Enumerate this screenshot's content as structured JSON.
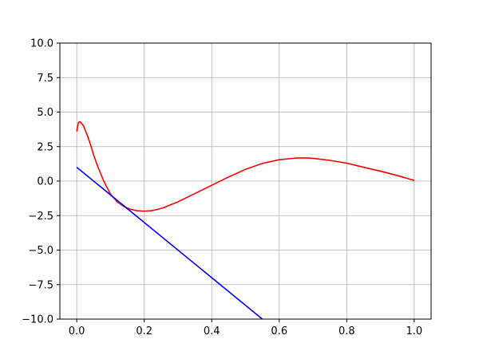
{
  "chart_data": {
    "type": "line",
    "title": "",
    "xlabel": "",
    "ylabel": "",
    "xlim": [
      -0.05,
      1.05
    ],
    "ylim": [
      -10.0,
      10.0
    ],
    "grid": true,
    "legend": "none",
    "x_ticks": [
      0.0,
      0.2,
      0.4,
      0.6,
      0.8,
      1.0
    ],
    "x_tick_labels": [
      "0.0",
      "0.2",
      "0.4",
      "0.6",
      "0.8",
      "1.0"
    ],
    "y_ticks": [
      -10.0,
      -7.5,
      -5.0,
      -2.5,
      0.0,
      2.5,
      5.0,
      7.5,
      10.0
    ],
    "y_tick_labels": [
      "−10.0",
      "−7.5",
      "−5.0",
      "−2.5",
      "0.0",
      "2.5",
      "5.0",
      "7.5",
      "10.0"
    ],
    "series": [
      {
        "color": "#ff0000",
        "x": [
          0.0,
          0.005,
          0.01,
          0.02,
          0.03,
          0.04,
          0.05,
          0.06,
          0.08,
          0.1,
          0.12,
          0.14,
          0.16,
          0.18,
          0.2,
          0.22,
          0.24,
          0.26,
          0.28,
          0.3,
          0.35,
          0.4,
          0.45,
          0.5,
          0.55,
          0.6,
          0.65,
          0.68,
          0.7,
          0.75,
          0.8,
          0.85,
          0.9,
          0.95,
          1.0
        ],
        "y": [
          3.6,
          4.25,
          4.3,
          4.0,
          3.4,
          2.7,
          1.9,
          1.2,
          0.0,
          -0.95,
          -1.5,
          -1.85,
          -2.05,
          -2.15,
          -2.18,
          -2.15,
          -2.05,
          -1.9,
          -1.7,
          -1.5,
          -0.9,
          -0.3,
          0.3,
          0.85,
          1.28,
          1.55,
          1.67,
          1.68,
          1.65,
          1.5,
          1.3,
          1.0,
          0.72,
          0.4,
          0.05
        ]
      },
      {
        "color": "#0000ff",
        "x": [
          0.0,
          0.55
        ],
        "y": [
          1.0,
          -10.0
        ]
      }
    ]
  }
}
